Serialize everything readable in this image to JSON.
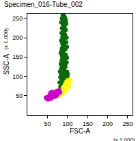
{
  "chart_data": {
    "type": "scatter",
    "title": "Specimen_016-Tube_002",
    "x_label": "FSC-A",
    "y_label": "SSC-A",
    "annotations": [
      {
        "text": "(x 1,000)",
        "axis": "x"
      },
      {
        "text": "(x 1,000)",
        "axis": "y"
      }
    ],
    "xlim": [
      0,
      262
    ],
    "ylim": [
      0,
      262
    ],
    "xticks": [
      50,
      100,
      150,
      200,
      250
    ],
    "yticks": [
      50,
      100,
      150,
      200,
      250
    ],
    "grid": false,
    "series": [
      {
        "color": "#0b6b0b",
        "points": [
          [
            88,
            258
          ],
          [
            92,
            255
          ],
          [
            86,
            250
          ],
          [
            95,
            248
          ],
          [
            90,
            243
          ],
          [
            84,
            240
          ],
          [
            97,
            236
          ],
          [
            89,
            232
          ],
          [
            93,
            228
          ],
          [
            86,
            224
          ],
          [
            96,
            220
          ],
          [
            91,
            216
          ],
          [
            85,
            212
          ],
          [
            94,
            208
          ],
          [
            88,
            204
          ],
          [
            98,
            200
          ],
          [
            90,
            196
          ],
          [
            84,
            192
          ],
          [
            95,
            188
          ],
          [
            87,
            184
          ],
          [
            92,
            180
          ],
          [
            99,
            176
          ],
          [
            86,
            172
          ],
          [
            93,
            168
          ],
          [
            89,
            164
          ],
          [
            83,
            160
          ],
          [
            96,
            156
          ],
          [
            90,
            152
          ],
          [
            87,
            148
          ],
          [
            94,
            144
          ],
          [
            85,
            140
          ],
          [
            98,
            136
          ],
          [
            91,
            132
          ],
          [
            88,
            128
          ],
          [
            95,
            124
          ],
          [
            84,
            120
          ],
          [
            92,
            116
          ],
          [
            99,
            112
          ],
          [
            87,
            108
          ],
          [
            93,
            104
          ],
          [
            89,
            100
          ],
          [
            96,
            96
          ],
          [
            85,
            92
          ],
          [
            91,
            88
          ],
          [
            100,
            84
          ],
          [
            88,
            80
          ],
          [
            94,
            76
          ],
          [
            82,
            73
          ],
          [
            97,
            70
          ],
          [
            90,
            261
          ],
          [
            94,
            252
          ],
          [
            91,
            246
          ],
          [
            87,
            238
          ],
          [
            92,
            234
          ],
          [
            90,
            226
          ],
          [
            94,
            218
          ],
          [
            88,
            214
          ],
          [
            91,
            206
          ],
          [
            93,
            198
          ],
          [
            89,
            190
          ],
          [
            91,
            182
          ],
          [
            88,
            176
          ],
          [
            95,
            170
          ],
          [
            90,
            160
          ],
          [
            86,
            154
          ],
          [
            92,
            146
          ],
          [
            89,
            138
          ],
          [
            95,
            132
          ],
          [
            86,
            126
          ],
          [
            90,
            118
          ],
          [
            96,
            110
          ],
          [
            84,
            104
          ],
          [
            91,
            96
          ],
          [
            88,
            86
          ],
          [
            97,
            80
          ],
          [
            85,
            78
          ],
          [
            93,
            92
          ],
          [
            82,
            98
          ],
          [
            100,
            100
          ],
          [
            81,
            112
          ],
          [
            102,
            90
          ],
          [
            80,
            84
          ],
          [
            101,
            106
          ],
          [
            83,
            132
          ],
          [
            99,
            148
          ],
          [
            85,
            166
          ],
          [
            97,
            188
          ],
          [
            87,
            200
          ],
          [
            96,
            244
          ]
        ]
      },
      {
        "color": "#ffff00",
        "points": [
          [
            78,
            52
          ],
          [
            82,
            50
          ],
          [
            86,
            55
          ],
          [
            80,
            58
          ],
          [
            88,
            60
          ],
          [
            92,
            58
          ],
          [
            84,
            62
          ],
          [
            90,
            64
          ],
          [
            95,
            62
          ],
          [
            87,
            67
          ],
          [
            93,
            70
          ],
          [
            98,
            66
          ],
          [
            91,
            74
          ],
          [
            96,
            76
          ],
          [
            100,
            72
          ],
          [
            94,
            80
          ],
          [
            99,
            82
          ],
          [
            103,
            78
          ],
          [
            97,
            86
          ],
          [
            102,
            88
          ],
          [
            105,
            84
          ],
          [
            100,
            90
          ],
          [
            106,
            91
          ],
          [
            85,
            57
          ],
          [
            89,
            71
          ],
          [
            94,
            66
          ],
          [
            101,
            80
          ],
          [
            104,
            74
          ],
          [
            79,
            55
          ],
          [
            96,
            71
          ]
        ]
      },
      {
        "color": "#cc00cc",
        "points": [
          [
            48,
            42
          ],
          [
            52,
            40
          ],
          [
            56,
            44
          ],
          [
            50,
            47
          ],
          [
            58,
            48
          ],
          [
            62,
            45
          ],
          [
            55,
            51
          ],
          [
            60,
            53
          ],
          [
            65,
            50
          ],
          [
            68,
            47
          ],
          [
            63,
            56
          ],
          [
            70,
            55
          ],
          [
            72,
            52
          ],
          [
            67,
            59
          ],
          [
            74,
            58
          ],
          [
            77,
            55
          ],
          [
            71,
            61
          ],
          [
            79,
            60
          ],
          [
            82,
            58
          ],
          [
            75,
            63
          ],
          [
            80,
            64
          ],
          [
            53,
            45
          ],
          [
            59,
            42
          ],
          [
            64,
            48
          ],
          [
            69,
            52
          ],
          [
            73,
            49
          ],
          [
            66,
            54
          ],
          [
            57,
            57
          ],
          [
            61,
            60
          ],
          [
            46,
            45
          ]
        ]
      }
    ]
  }
}
